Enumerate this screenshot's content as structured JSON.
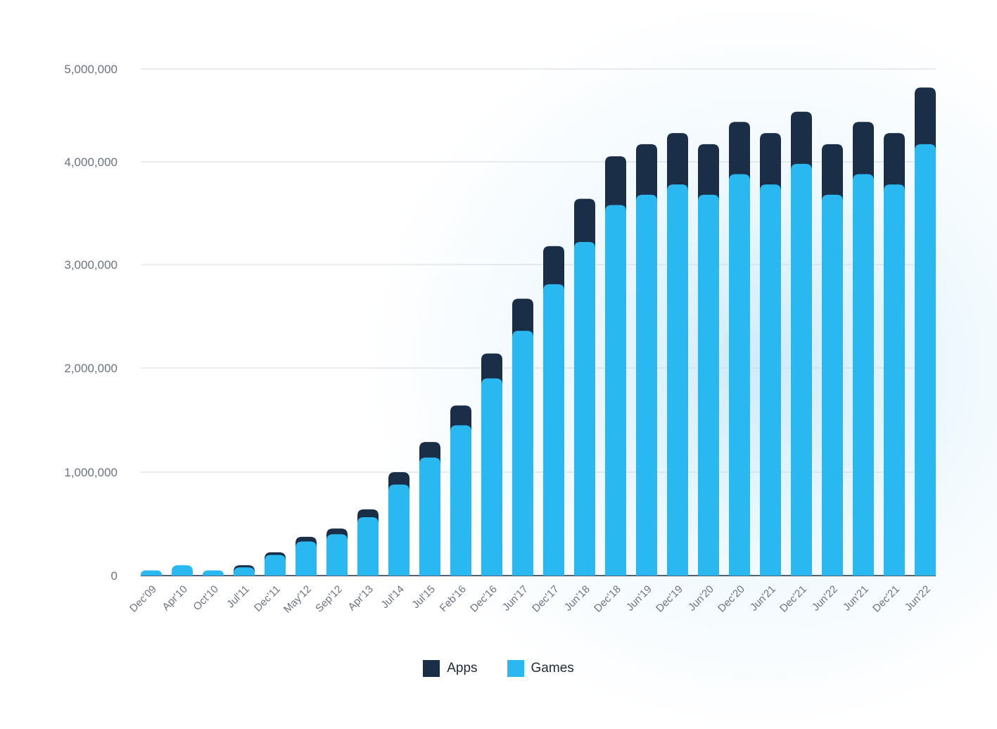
{
  "chart_data": {
    "type": "bar",
    "stacked": true,
    "title": "",
    "xlabel": "",
    "ylabel": "",
    "ylim": [
      0,
      5000000
    ],
    "yticks": [
      0,
      1000000,
      2000000,
      3000000,
      4000000,
      5000000
    ],
    "ytick_labels": [
      "0",
      "1,000,000",
      "2,000,000",
      "3,000,000",
      "4,000,000",
      "5,000,000"
    ],
    "grid": true,
    "legend_position": "bottom",
    "categories": [
      "Dec'09",
      "Apr'10",
      "Oct'10",
      "Jul'11",
      "Dec'11",
      "May'12",
      "Sep'12",
      "Apr'13",
      "Jul'14",
      "Jul'15",
      "Feb'16",
      "Dec'16",
      "Jun'17",
      "Dec'17",
      "Jun'18",
      "Dec'18",
      "Jun'19",
      "Dec'19",
      "Jun'20",
      "Dec'20",
      "Jun'21",
      "Dec'21",
      "Jun'22",
      "Jun'21",
      "Dec'21",
      "Jun'22"
    ],
    "series": [
      {
        "name": "Games",
        "color": "#29b8f0",
        "values": [
          50000,
          100000,
          50000,
          80000,
          200000,
          330000,
          400000,
          565000,
          880000,
          1140000,
          1450000,
          1900000,
          2360000,
          2810000,
          3220000,
          3580000,
          3680000,
          3780000,
          3680000,
          3880000,
          3780000,
          3980000,
          3680000,
          3880000,
          3780000,
          4190000
        ]
      },
      {
        "name": "Apps",
        "color": "#1a2e48",
        "values": [
          0,
          0,
          0,
          20000,
          25000,
          45000,
          55000,
          75000,
          120000,
          150000,
          190000,
          240000,
          310000,
          370000,
          420000,
          480000,
          510000,
          530000,
          510000,
          550000,
          530000,
          560000,
          510000,
          550000,
          530000,
          610000
        ]
      }
    ]
  },
  "legend": {
    "apps": "Apps",
    "games": "Games"
  }
}
